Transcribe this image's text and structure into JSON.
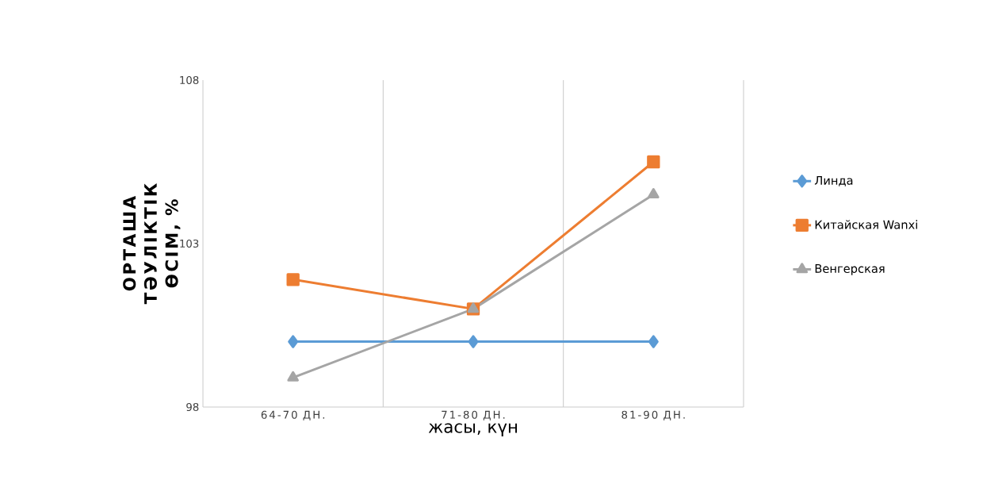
{
  "chart_data": {
    "type": "line",
    "xlabel": "жасы, күн",
    "ylabel": "ОРТАША ТӘУЛІКТІК ӨСІМ, %",
    "categories": [
      "64-70 ДН.",
      "71-80 ДН.",
      "81-90 ДН."
    ],
    "series": [
      {
        "name": "Линда",
        "color": "#5b9bd5",
        "marker": "diamond",
        "values": [
          100,
          100,
          100
        ]
      },
      {
        "name": "Китайская Wanxi",
        "color": "#ed7d31",
        "marker": "square",
        "values": [
          101.9,
          101,
          105.5
        ]
      },
      {
        "name": "Венгерская",
        "color": "#a5a5a5",
        "marker": "triangle",
        "values": [
          98.9,
          101,
          104.5
        ]
      }
    ],
    "ylim": [
      98,
      108
    ],
    "yticks": [
      98,
      103,
      108
    ],
    "grid": "x",
    "legend": "right",
    "line_style": "solid"
  }
}
